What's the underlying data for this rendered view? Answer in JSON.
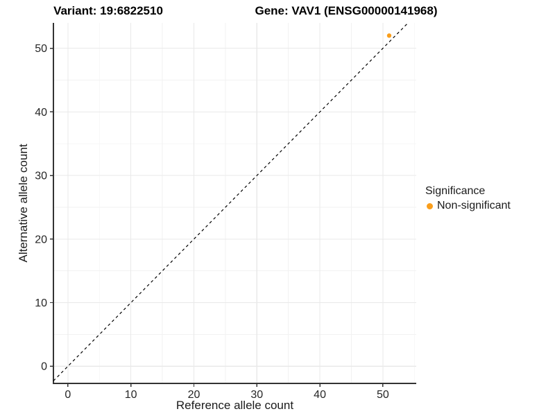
{
  "figure": {
    "background": "#FFFFFF"
  },
  "chart_data": {
    "type": "scatter",
    "titles": {
      "variant": "Variant: 19:6822510",
      "gene": "Gene: VAV1 (ENSG00000141968)"
    },
    "xlabel": "Reference allele count",
    "ylabel": "Alternative allele count",
    "xlim": [
      -2.3,
      55.3
    ],
    "ylim": [
      -2.7,
      54.0
    ],
    "x_ticks": [
      0,
      10,
      20,
      30,
      40,
      50
    ],
    "y_ticks": [
      0,
      10,
      20,
      30,
      40,
      50
    ],
    "x_minor_ticks": [
      5,
      15,
      25,
      35,
      45,
      55
    ],
    "y_minor_ticks": [
      5,
      15,
      25,
      35,
      45
    ],
    "grid": true,
    "identity_line": {
      "type": "y=x",
      "style": "dashed",
      "color": "#000000"
    },
    "points": [
      {
        "x": 51,
        "y": 52,
        "series": "Non-significant"
      }
    ],
    "legend": {
      "title": "Significance",
      "position": "right",
      "items": [
        {
          "label": "Non-significant",
          "color": "#FA9E1B"
        }
      ]
    },
    "colors": {
      "point_non_significant": "#FA9E1B",
      "grid_major": "#E9E9E9",
      "grid_minor": "#F2F2F2",
      "axis_line": "#333333",
      "tick_label": "#262626"
    }
  }
}
